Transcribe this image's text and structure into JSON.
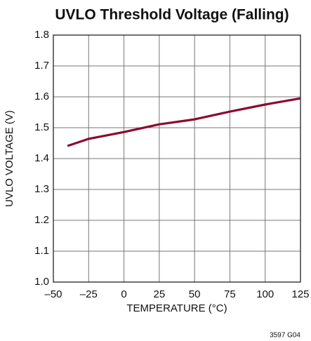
{
  "chart_data": {
    "type": "line",
    "title": "UVLO Threshold Voltage (Falling)",
    "x_label": "TEMPERATURE (°C)",
    "y_label": "UVLO VOLTAGE (V)",
    "note": "3597 G04",
    "x": [
      -40,
      -25,
      0,
      25,
      50,
      75,
      100,
      125
    ],
    "series": [
      {
        "name": "UVLO",
        "color": "#8b0a30",
        "values": [
          1.441,
          1.464,
          1.486,
          1.511,
          1.527,
          1.552,
          1.575,
          1.595
        ]
      }
    ],
    "xlim": [
      -50,
      125
    ],
    "xticks": [
      {
        "value": -50,
        "label": "–50"
      },
      {
        "value": -25,
        "label": "–25"
      },
      0,
      25,
      50,
      75,
      100,
      125
    ],
    "ylim": [
      1,
      1.8
    ],
    "yticks": [
      {
        "value": 1,
        "label": "1.0"
      },
      1.1,
      1.2,
      1.3,
      1.4,
      1.5,
      1.6,
      1.7,
      1.8
    ],
    "grid": true
  }
}
